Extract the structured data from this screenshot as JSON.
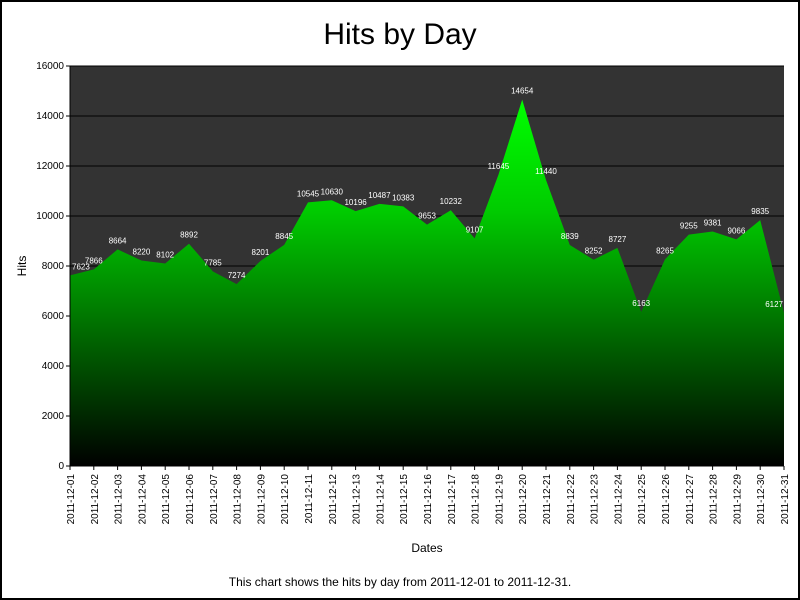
{
  "chart_data": {
    "type": "area",
    "title": "Hits by Day",
    "xlabel": "Dates",
    "ylabel": "Hits",
    "ylim": [
      0,
      16000
    ],
    "yticks": [
      "0",
      "2000",
      "4000",
      "6000",
      "8000",
      "10000",
      "12000",
      "14000",
      "16000"
    ],
    "grid": true,
    "categories": [
      "2011-12-01",
      "2011-12-02",
      "2011-12-03",
      "2011-12-04",
      "2011-12-05",
      "2011-12-06",
      "2011-12-07",
      "2011-12-08",
      "2011-12-09",
      "2011-12-10",
      "2011-12-11",
      "2011-12-12",
      "2011-12-13",
      "2011-12-14",
      "2011-12-15",
      "2011-12-16",
      "2011-12-17",
      "2011-12-18",
      "2011-12-19",
      "2011-12-20",
      "2011-12-21",
      "2011-12-22",
      "2011-12-23",
      "2011-12-24",
      "2011-12-25",
      "2011-12-26",
      "2011-12-27",
      "2011-12-28",
      "2011-12-29",
      "2011-12-30",
      "2011-12-31"
    ],
    "values": [
      7623,
      7866,
      8664,
      8220,
      8102,
      8892,
      7785,
      7274,
      8201,
      8845,
      10545,
      10630,
      10196,
      10487,
      10383,
      9653,
      10232,
      9107,
      11645,
      14654,
      11440,
      8839,
      8252,
      8727,
      6163,
      8265,
      9255,
      9381,
      9066,
      9835,
      6127
    ],
    "caption": "This chart shows the hits by day from 2011-12-01 to 2011-12-31."
  },
  "colors": {
    "plot_background": "#333333",
    "gridline": "#000000",
    "area_top": "#00ff00",
    "area_bottom": "#000000",
    "data_label": "#ffffff"
  }
}
